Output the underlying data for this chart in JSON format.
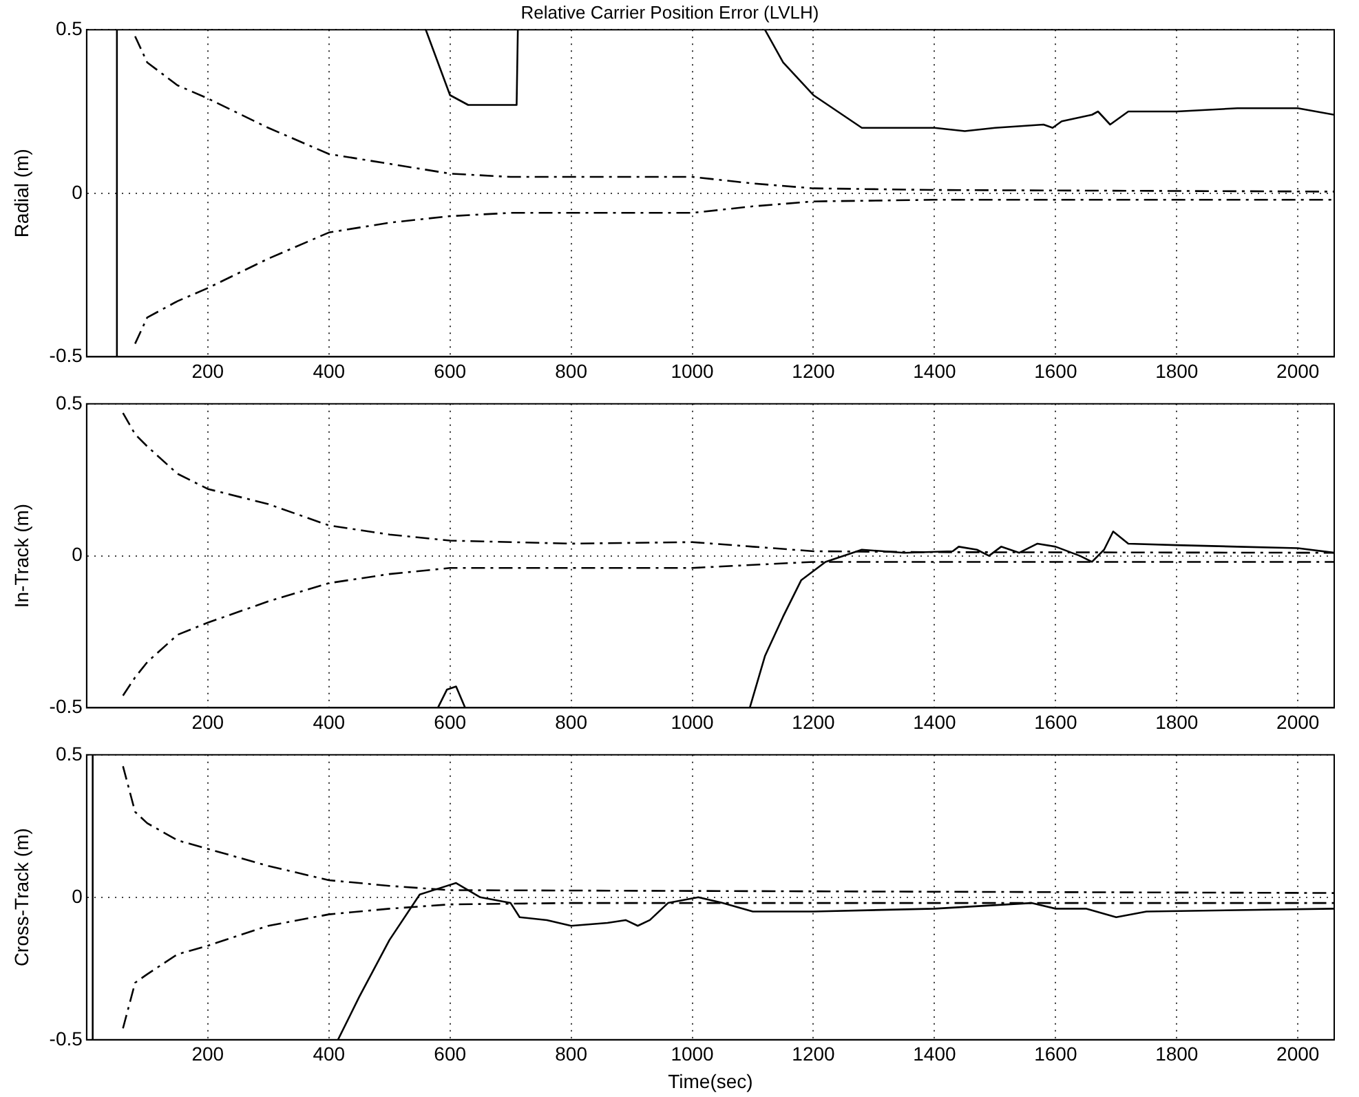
{
  "chart_data": [
    {
      "type": "line",
      "title": "Relative Carrier Position Error (LVLH)",
      "ylabel": "Radial (m)",
      "xlim": [
        0,
        2060
      ],
      "xticks": [
        200,
        400,
        600,
        800,
        1000,
        1200,
        1400,
        1600,
        1800,
        2000
      ],
      "ylim": [
        -0.5,
        0.5
      ],
      "yticks": [
        -0.5,
        0,
        0.5
      ],
      "grid": true,
      "legend": false,
      "series": [
        {
          "color": "#000000",
          "line_style": "solid",
          "x": [
            50,
            50,
            300,
            560,
            600,
            630,
            710,
            712,
            900,
            1120,
            1150,
            1200,
            1280,
            1400,
            1450,
            1500,
            1580,
            1595,
            1610,
            1660,
            1670,
            1690,
            1720,
            1800,
            1900,
            2000,
            2060
          ],
          "values": [
            -0.5,
            0.5,
            null,
            0.5,
            0.3,
            0.27,
            0.27,
            0.5,
            null,
            0.5,
            0.4,
            0.3,
            0.2,
            0.2,
            0.19,
            0.2,
            0.21,
            0.2,
            0.22,
            0.24,
            0.25,
            0.21,
            0.25,
            0.25,
            0.26,
            0.26,
            0.24
          ]
        },
        {
          "color": "#000000",
          "line_style": "dashed",
          "x": [
            80,
            100,
            150,
            200,
            300,
            400,
            500,
            600,
            700,
            800,
            1000,
            1100,
            1200,
            1400,
            2060
          ],
          "values": [
            0.48,
            0.4,
            0.33,
            0.29,
            0.2,
            0.12,
            0.09,
            0.06,
            0.05,
            0.05,
            0.05,
            0.03,
            0.015,
            0.01,
            0.005
          ]
        },
        {
          "color": "#000000",
          "line_style": "dashed",
          "x": [
            80,
            100,
            150,
            200,
            300,
            400,
            500,
            600,
            700,
            800,
            1000,
            1100,
            1200,
            1400,
            2060
          ],
          "values": [
            -0.46,
            -0.38,
            -0.33,
            -0.29,
            -0.2,
            -0.12,
            -0.09,
            -0.07,
            -0.06,
            -0.06,
            -0.06,
            -0.04,
            -0.025,
            -0.02,
            -0.02
          ]
        }
      ]
    },
    {
      "type": "line",
      "ylabel": "In-Track (m)",
      "xlim": [
        0,
        2060
      ],
      "xticks": [
        200,
        400,
        600,
        800,
        1000,
        1200,
        1400,
        1600,
        1800,
        2000
      ],
      "ylim": [
        -0.5,
        0.5
      ],
      "yticks": [
        -0.5,
        0,
        0.5
      ],
      "grid": true,
      "legend": false,
      "series": [
        {
          "color": "#000000",
          "line_style": "solid",
          "x": [
            580,
            595,
            610,
            625,
            800,
            1095,
            1120,
            1150,
            1180,
            1220,
            1280,
            1350,
            1430,
            1440,
            1470,
            1490,
            1510,
            1540,
            1570,
            1600,
            1640,
            1660,
            1680,
            1695,
            1720,
            1800,
            1900,
            2000,
            2060
          ],
          "values": [
            -0.5,
            -0.44,
            -0.43,
            -0.5,
            null,
            -0.5,
            -0.33,
            -0.2,
            -0.08,
            -0.02,
            0.02,
            0.01,
            0.015,
            0.03,
            0.02,
            0.0,
            0.03,
            0.01,
            0.04,
            0.03,
            0.0,
            -0.02,
            0.02,
            0.08,
            0.04,
            0.035,
            0.03,
            0.025,
            0.01
          ]
        },
        {
          "color": "#000000",
          "line_style": "dashed",
          "x": [
            60,
            80,
            100,
            150,
            200,
            300,
            400,
            500,
            600,
            800,
            1000,
            1100,
            1200,
            1400,
            2060
          ],
          "values": [
            0.47,
            0.4,
            0.36,
            0.27,
            0.22,
            0.17,
            0.1,
            0.07,
            0.05,
            0.04,
            0.045,
            0.03,
            0.015,
            0.012,
            0.01
          ]
        },
        {
          "color": "#000000",
          "line_style": "dashed",
          "x": [
            60,
            80,
            100,
            150,
            200,
            300,
            400,
            500,
            600,
            800,
            1000,
            1200,
            2060
          ],
          "values": [
            -0.46,
            -0.4,
            -0.35,
            -0.26,
            -0.22,
            -0.15,
            -0.09,
            -0.06,
            -0.04,
            -0.04,
            -0.04,
            -0.02,
            -0.02
          ]
        }
      ]
    },
    {
      "type": "line",
      "xlabel": "Time(sec)",
      "ylabel": "Cross-Track (m)",
      "xlim": [
        0,
        2060
      ],
      "xticks": [
        200,
        400,
        600,
        800,
        1000,
        1200,
        1400,
        1600,
        1800,
        2000
      ],
      "ylim": [
        -0.5,
        0.5
      ],
      "yticks": [
        -0.5,
        0,
        0.5
      ],
      "grid": true,
      "legend": false,
      "series": [
        {
          "color": "#000000",
          "line_style": "solid",
          "x": [
            10,
            10,
            200,
            415,
            450,
            500,
            550,
            580,
            610,
            650,
            700,
            715,
            760,
            800,
            860,
            890,
            910,
            930,
            960,
            1010,
            1050,
            1100,
            1200,
            1400,
            1560,
            1600,
            1650,
            1700,
            1750,
            2060
          ],
          "values": [
            -0.5,
            0.5,
            null,
            -0.5,
            -0.35,
            -0.15,
            0.01,
            0.03,
            0.05,
            0.0,
            -0.02,
            -0.07,
            -0.08,
            -0.1,
            -0.09,
            -0.08,
            -0.1,
            -0.08,
            -0.02,
            0.0,
            -0.02,
            -0.05,
            -0.05,
            -0.04,
            -0.02,
            -0.04,
            -0.04,
            -0.07,
            -0.05,
            -0.04
          ]
        },
        {
          "color": "#000000",
          "line_style": "dashed",
          "x": [
            60,
            80,
            100,
            150,
            200,
            300,
            400,
            500,
            600,
            2060
          ],
          "values": [
            0.46,
            0.3,
            0.26,
            0.2,
            0.17,
            0.11,
            0.06,
            0.04,
            0.025,
            0.015
          ]
        },
        {
          "color": "#000000",
          "line_style": "dashed",
          "x": [
            60,
            80,
            100,
            150,
            200,
            300,
            400,
            500,
            600,
            800,
            2060
          ],
          "values": [
            -0.46,
            -0.3,
            -0.27,
            -0.2,
            -0.17,
            -0.1,
            -0.06,
            -0.04,
            -0.025,
            -0.02,
            -0.02
          ]
        }
      ]
    }
  ]
}
